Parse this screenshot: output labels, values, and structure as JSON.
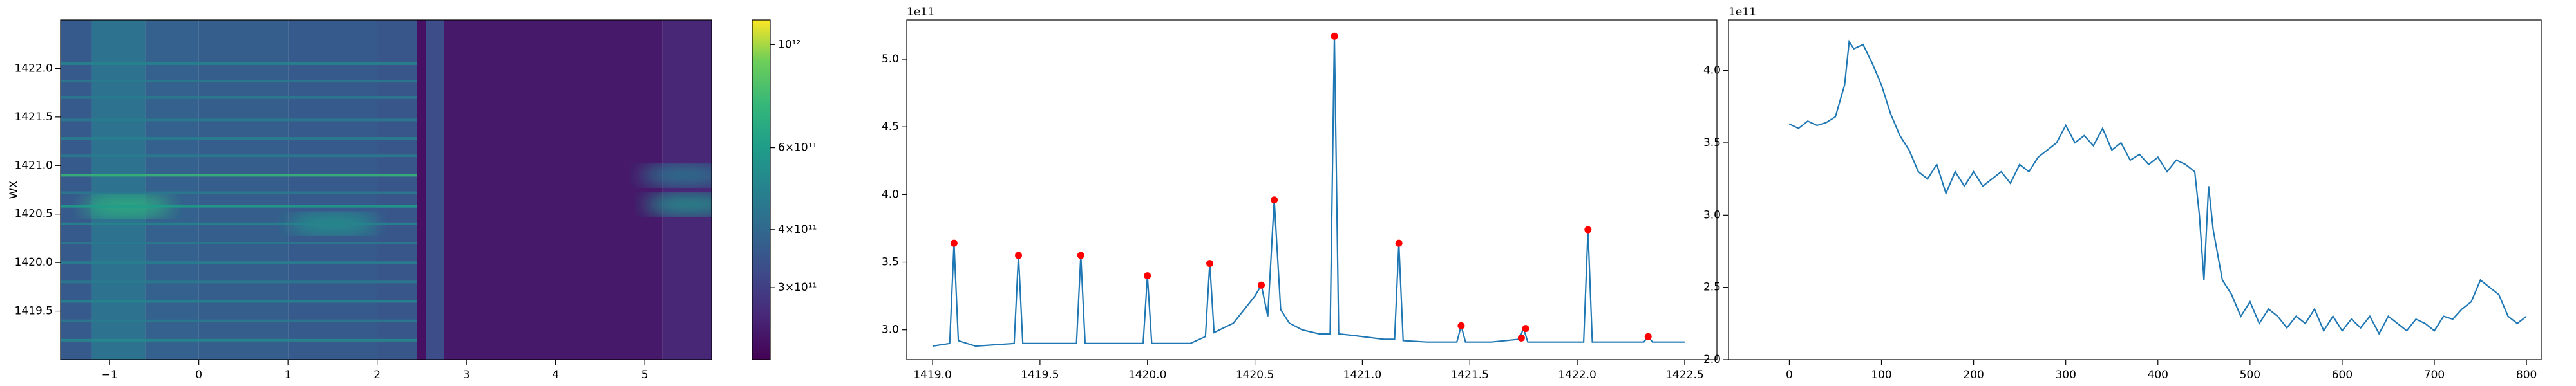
{
  "chart_data": [
    {
      "type": "heatmap",
      "ylabel": "WX",
      "xlim": [
        -1.55,
        5.75
      ],
      "ylim": [
        1419.0,
        1422.5
      ],
      "xticks": [
        {
          "value": -1,
          "label": "−1"
        },
        0,
        1,
        2,
        3,
        4,
        5
      ],
      "yticks": [
        1419.5,
        {
          "value": 1420,
          "label": "1420.0"
        },
        1420.5,
        {
          "value": 1421,
          "label": "1421.0"
        },
        1421.5,
        {
          "value": 1422,
          "label": "1422.0"
        }
      ],
      "x_edges": [
        -1.55,
        -1.2,
        -0.6,
        0,
        1,
        2,
        2.45,
        2.55,
        2.75,
        5.2,
        5.75
      ],
      "column_values": [
        360000000000.0,
        430000000000.0,
        380000000000.0,
        370000000000.0,
        360000000000.0,
        350000000000.0,
        230000000000.0,
        330000000000.0,
        240000000000.0,
        260000000000.0
      ],
      "lines": {
        "y": [
          1419.2,
          1419.4,
          1419.6,
          1419.8,
          1420.0,
          1420.2,
          1420.4,
          1420.58,
          1420.72,
          1420.9,
          1421.1,
          1421.28,
          1421.47,
          1421.7,
          1421.87,
          1422.05
        ],
        "values": [
          520000000000.0,
          460000000000.0,
          500000000000.0,
          460000000000.0,
          480000000000.0,
          460000000000.0,
          500000000000.0,
          600000000000.0,
          460000000000.0,
          750000000000.0,
          460000000000.0,
          480000000000.0,
          460000000000.0,
          460000000000.0,
          460000000000.0,
          500000000000.0
        ]
      },
      "hotspots": {
        "x": [
          -0.8,
          1.5,
          5.5,
          5.45
        ],
        "y": [
          1420.58,
          1420.4,
          1420.6,
          1420.9
        ],
        "values": [
          700000000000.0,
          550000000000.0,
          550000000000.0,
          450000000000.0
        ]
      },
      "colorbar": {
        "log": true,
        "lim": [
          210000000000.0,
          1130000000000.0
        ],
        "ticks": [
          {
            "value": 300000000000.0,
            "label": "3×10¹¹"
          },
          {
            "value": 400000000000.0,
            "label": "4×10¹¹"
          },
          {
            "value": 600000000000.0,
            "label": "6×10¹¹"
          },
          {
            "value": 1000000000000.0,
            "label": "10¹²"
          }
        ]
      }
    },
    {
      "type": "line",
      "offset_text": "1e11",
      "color": "#1f77b4",
      "xlim": [
        1418.88,
        1422.65
      ],
      "ylim": [
        2.78,
        5.29
      ],
      "xticks": [
        {
          "value": 1419,
          "label": "1419.0"
        },
        1419.5,
        {
          "value": 1420,
          "label": "1420.0"
        },
        1420.5,
        {
          "value": 1421,
          "label": "1421.0"
        },
        1421.5,
        {
          "value": 1422,
          "label": "1422.0"
        },
        1422.5
      ],
      "yticks": [
        {
          "value": 3,
          "label": "3.0"
        },
        3.5,
        {
          "value": 4,
          "label": "4.0"
        },
        4.5,
        {
          "value": 5,
          "label": "5.0"
        }
      ],
      "x": [
        1419.0,
        1419.08,
        1419.1,
        1419.12,
        1419.2,
        1419.38,
        1419.4,
        1419.42,
        1419.67,
        1419.69,
        1419.71,
        1419.98,
        1420.0,
        1420.02,
        1420.2,
        1420.27,
        1420.29,
        1420.31,
        1420.4,
        1420.45,
        1420.5,
        1420.53,
        1420.56,
        1420.59,
        1420.62,
        1420.66,
        1420.72,
        1420.8,
        1420.85,
        1420.87,
        1420.89,
        1420.95,
        1421.1,
        1421.15,
        1421.17,
        1421.19,
        1421.3,
        1421.44,
        1421.46,
        1421.48,
        1421.6,
        1421.73,
        1421.75,
        1421.77,
        1421.9,
        1422.03,
        1422.05,
        1422.07,
        1422.2,
        1422.31,
        1422.33,
        1422.35,
        1422.5
      ],
      "values": [
        2.88,
        2.9,
        3.64,
        2.92,
        2.88,
        2.9,
        3.55,
        2.9,
        2.9,
        3.55,
        2.9,
        2.9,
        3.4,
        2.9,
        2.9,
        2.95,
        3.49,
        2.98,
        3.05,
        3.15,
        3.25,
        3.33,
        3.1,
        3.96,
        3.15,
        3.05,
        3.0,
        2.97,
        2.97,
        5.17,
        2.97,
        2.96,
        2.93,
        2.93,
        3.64,
        2.92,
        2.91,
        2.91,
        3.03,
        2.91,
        2.91,
        2.93,
        3.01,
        2.91,
        2.91,
        2.91,
        3.74,
        2.91,
        2.91,
        2.91,
        2.95,
        2.91,
        2.91
      ],
      "peaks": {
        "color": "#ff0000",
        "x": [
          1419.1,
          1419.4,
          1419.69,
          1420.0,
          1420.29,
          1420.53,
          1420.59,
          1420.87,
          1421.17,
          1421.46,
          1421.74,
          1421.76,
          1422.05,
          1422.33
        ],
        "values": [
          3.64,
          3.55,
          3.55,
          3.4,
          3.49,
          3.33,
          3.96,
          5.17,
          3.64,
          3.03,
          2.94,
          3.01,
          3.74,
          2.95
        ]
      }
    },
    {
      "type": "line",
      "offset_text": "1e11",
      "color": "#1f77b4",
      "xlim": [
        -66,
        816
      ],
      "ylim": [
        2.0,
        4.35
      ],
      "xticks": [
        0,
        100,
        200,
        300,
        400,
        500,
        600,
        700,
        800
      ],
      "yticks": [
        {
          "value": 2,
          "label": "2.0"
        },
        2.5,
        {
          "value": 3,
          "label": "3.0"
        },
        3.5,
        {
          "value": 4,
          "label": "4.0"
        }
      ],
      "x": [
        0,
        10,
        20,
        30,
        40,
        50,
        60,
        65,
        70,
        80,
        90,
        100,
        110,
        120,
        130,
        140,
        150,
        160,
        170,
        180,
        190,
        200,
        210,
        220,
        230,
        240,
        250,
        260,
        270,
        280,
        290,
        300,
        310,
        320,
        330,
        340,
        350,
        360,
        370,
        380,
        390,
        400,
        410,
        420,
        430,
        440,
        445,
        450,
        455,
        460,
        470,
        480,
        490,
        500,
        510,
        520,
        530,
        540,
        550,
        560,
        570,
        580,
        590,
        600,
        610,
        620,
        630,
        640,
        650,
        660,
        670,
        680,
        690,
        700,
        710,
        720,
        730,
        740,
        750,
        760,
        770,
        780,
        790,
        800
      ],
      "values": [
        3.63,
        3.6,
        3.65,
        3.62,
        3.64,
        3.68,
        3.9,
        4.2,
        4.15,
        4.18,
        4.05,
        3.9,
        3.7,
        3.55,
        3.45,
        3.3,
        3.25,
        3.35,
        3.15,
        3.3,
        3.2,
        3.3,
        3.2,
        3.25,
        3.3,
        3.22,
        3.35,
        3.3,
        3.4,
        3.45,
        3.5,
        3.62,
        3.5,
        3.55,
        3.48,
        3.6,
        3.45,
        3.5,
        3.38,
        3.42,
        3.35,
        3.4,
        3.3,
        3.38,
        3.35,
        3.3,
        3.0,
        2.55,
        3.2,
        2.9,
        2.55,
        2.45,
        2.3,
        2.4,
        2.25,
        2.35,
        2.3,
        2.22,
        2.3,
        2.25,
        2.35,
        2.2,
        2.3,
        2.2,
        2.28,
        2.22,
        2.3,
        2.18,
        2.3,
        2.25,
        2.2,
        2.28,
        2.25,
        2.2,
        2.3,
        2.28,
        2.35,
        2.4,
        2.55,
        2.5,
        2.45,
        2.3,
        2.25,
        2.3
      ]
    }
  ]
}
